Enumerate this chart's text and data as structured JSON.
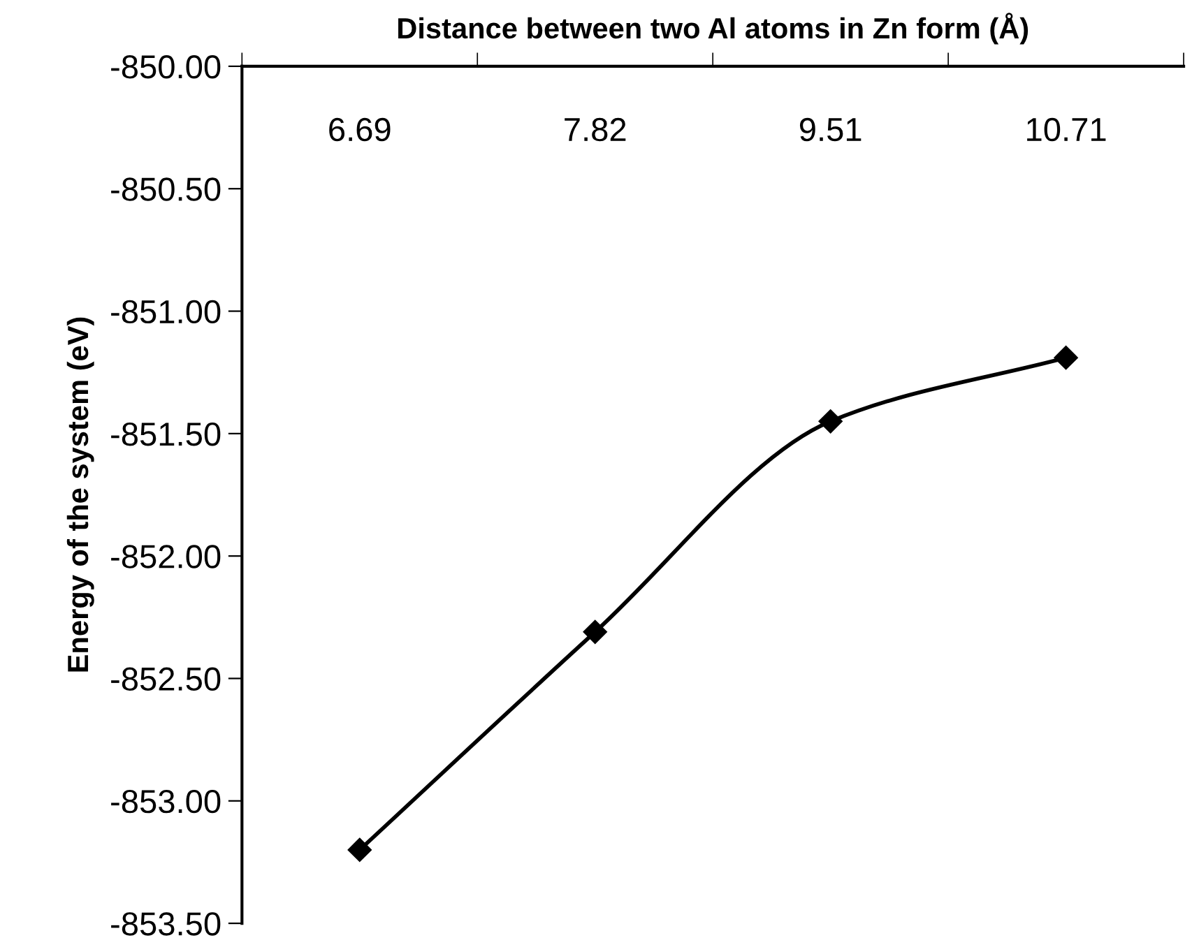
{
  "chart_data": {
    "type": "line",
    "xlabel": "Distance between two Al atoms in Zn form (Å)",
    "ylabel": "Energy of the system (eV)",
    "categories": [
      "6.69",
      "7.82",
      "9.51",
      "10.71"
    ],
    "series": [
      {
        "color": "#000000",
        "values": [
          -853.2,
          -852.31,
          -851.45,
          -851.19
        ]
      }
    ],
    "ylim": [
      -853.5,
      -850.0
    ],
    "yticks": [
      {
        "value": -853.5,
        "label": "-853.50"
      },
      {
        "value": -853.0,
        "label": "-853.00"
      },
      {
        "value": -852.5,
        "label": "-852.50"
      },
      {
        "value": -852.0,
        "label": "-852.00"
      },
      {
        "value": -851.5,
        "label": "-851.50"
      },
      {
        "value": -851.0,
        "label": "-851.00"
      },
      {
        "value": -850.5,
        "label": "-850.50"
      },
      {
        "value": -850.0,
        "label": "-850.00"
      }
    ],
    "marker": "diamond",
    "line_style": "solid",
    "grid": false,
    "legend": false
  }
}
